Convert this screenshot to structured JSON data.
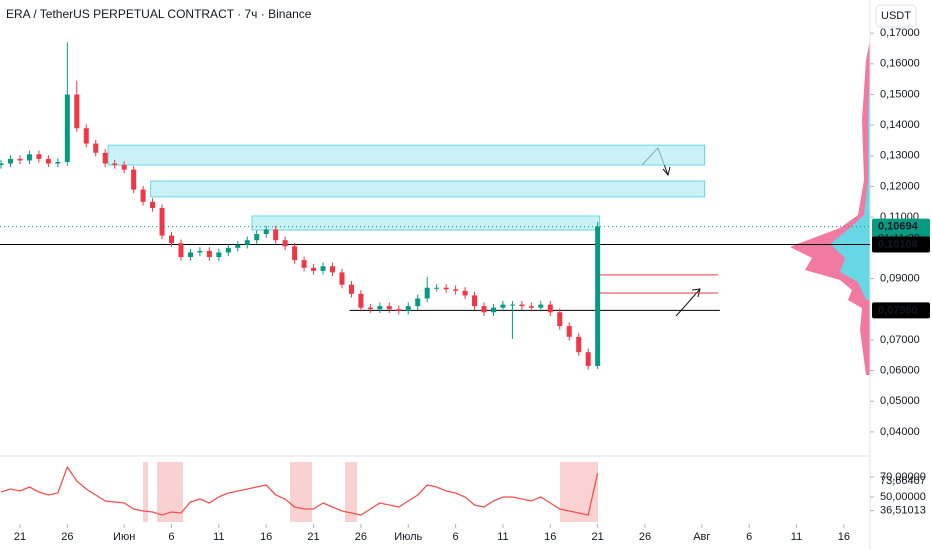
{
  "chart_data": {
    "type": "candlestick",
    "title": "ERA / TetherUS PERPETUAL CONTRACT · 7ч · Binance",
    "currency_button": "USDT",
    "up_color": "#089981",
    "down_color": "#f23645",
    "zone_color": "#b2ebf2",
    "xlim": [
      -2.11,
      89.76
    ],
    "xticks": [
      {
        "value": 0,
        "label": "21"
      },
      {
        "value": 5,
        "label": "26"
      },
      {
        "value": 11,
        "label": "Июн"
      },
      {
        "value": 16,
        "label": "6"
      },
      {
        "value": 21,
        "label": "11"
      },
      {
        "value": 26,
        "label": "16"
      },
      {
        "value": 31,
        "label": "21"
      },
      {
        "value": 36,
        "label": "26"
      },
      {
        "value": 41,
        "label": "Июль"
      },
      {
        "value": 46,
        "label": "6"
      },
      {
        "value": 51,
        "label": "11"
      },
      {
        "value": 56,
        "label": "16"
      },
      {
        "value": 61,
        "label": "21"
      },
      {
        "value": 66,
        "label": "26"
      },
      {
        "value": 72,
        "label": "Авг"
      },
      {
        "value": 77,
        "label": "6"
      },
      {
        "value": 82,
        "label": "11"
      },
      {
        "value": 87,
        "label": "16"
      }
    ],
    "ylim": [
      0.0341,
      0.1808
    ],
    "yticks": [
      {
        "value": 0.17,
        "label": "0,17000"
      },
      {
        "value": 0.16,
        "label": "0,16000"
      },
      {
        "value": 0.15,
        "label": "0,15000"
      },
      {
        "value": 0.14,
        "label": "0,14000"
      },
      {
        "value": 0.13,
        "label": "0,13000"
      },
      {
        "value": 0.12,
        "label": "0,12000"
      },
      {
        "value": 0.11,
        "label": "0,11000"
      },
      {
        "value": 0.09,
        "label": "0,09000"
      },
      {
        "value": 0.07,
        "label": "0,07000"
      },
      {
        "value": 0.06,
        "label": "0,06000"
      },
      {
        "value": 0.05,
        "label": "0,05000"
      },
      {
        "value": 0.04,
        "label": "0,04000"
      }
    ],
    "x": [
      -2,
      -1,
      0,
      1,
      2,
      3,
      4,
      5,
      6,
      7,
      8,
      9,
      10,
      11,
      12,
      13,
      14,
      15,
      16,
      17,
      18,
      19,
      20,
      21,
      22,
      23,
      24,
      25,
      26,
      27,
      28,
      29,
      30,
      31,
      32,
      33,
      34,
      35,
      36,
      37,
      38,
      39,
      40,
      41,
      42,
      43,
      44,
      45,
      46,
      47,
      48,
      49,
      50,
      51,
      52,
      53,
      54,
      55,
      56,
      57,
      58,
      59,
      60,
      61
    ],
    "open": [
      0.127,
      0.1275,
      0.129,
      0.1285,
      0.1305,
      0.129,
      0.1275,
      0.128,
      0.15,
      0.139,
      0.134,
      0.131,
      0.1275,
      0.127,
      0.1255,
      0.119,
      0.115,
      0.113,
      0.104,
      0.1015,
      0.097,
      0.0985,
      0.099,
      0.097,
      0.0985,
      0.1,
      0.101,
      0.1025,
      0.1045,
      0.106,
      0.1025,
      0.1005,
      0.096,
      0.0935,
      0.0925,
      0.094,
      0.092,
      0.088,
      0.085,
      0.0805,
      0.08,
      0.081,
      0.08,
      0.0795,
      0.081,
      0.0835,
      0.087,
      0.087,
      0.0865,
      0.086,
      0.0845,
      0.081,
      0.079,
      0.0805,
      0.0815,
      0.0815,
      0.081,
      0.0805,
      0.0815,
      0.079,
      0.0745,
      0.071,
      0.066,
      0.0615
    ],
    "high": [
      0.1287,
      0.1302,
      0.1302,
      0.1317,
      0.1317,
      0.1302,
      0.1292,
      0.167,
      0.1545,
      0.1402,
      0.1352,
      0.1322,
      0.1287,
      0.1282,
      0.1267,
      0.1202,
      0.1162,
      0.1142,
      0.1052,
      0.1027,
      0.0997,
      0.1002,
      0.1002,
      0.0997,
      0.1012,
      0.1022,
      0.1037,
      0.1057,
      0.1072,
      0.1072,
      0.1037,
      0.1017,
      0.0972,
      0.0947,
      0.0952,
      0.0952,
      0.0932,
      0.0892,
      0.0862,
      0.0817,
      0.0822,
      0.0822,
      0.0812,
      0.0822,
      0.0847,
      0.0905,
      0.0882,
      0.0882,
      0.0877,
      0.0872,
      0.0857,
      0.0822,
      0.0817,
      0.0827,
      0.0827,
      0.0827,
      0.0822,
      0.0827,
      0.0827,
      0.0802,
      0.0757,
      0.0722,
      0.0672,
      0.1085
    ],
    "low": [
      0.1258,
      0.1263,
      0.1273,
      0.1273,
      0.1278,
      0.1263,
      0.1263,
      0.1268,
      0.1378,
      0.1328,
      0.1298,
      0.1263,
      0.1258,
      0.1243,
      0.1178,
      0.1138,
      0.1118,
      0.1028,
      0.1003,
      0.0958,
      0.0958,
      0.0973,
      0.0958,
      0.0958,
      0.0973,
      0.0988,
      0.0998,
      0.1013,
      0.1033,
      0.1013,
      0.0993,
      0.0948,
      0.0923,
      0.0913,
      0.0913,
      0.0908,
      0.0868,
      0.0838,
      0.0793,
      0.0788,
      0.0788,
      0.0788,
      0.0783,
      0.0783,
      0.0798,
      0.0823,
      0.0858,
      0.0853,
      0.0848,
      0.0833,
      0.0798,
      0.0778,
      0.0778,
      0.0793,
      0.0703,
      0.0798,
      0.0793,
      0.0793,
      0.0778,
      0.0733,
      0.0698,
      0.0648,
      0.0603,
      0.0605
    ],
    "close": [
      0.1275,
      0.129,
      0.1285,
      0.1305,
      0.129,
      0.1275,
      0.128,
      0.15,
      0.139,
      0.134,
      0.131,
      0.1275,
      0.127,
      0.1255,
      0.119,
      0.115,
      0.113,
      0.104,
      0.1015,
      0.097,
      0.0985,
      0.099,
      0.097,
      0.0985,
      0.1,
      0.101,
      0.1025,
      0.1045,
      0.106,
      0.1025,
      0.1005,
      0.096,
      0.0935,
      0.0925,
      0.094,
      0.092,
      0.088,
      0.085,
      0.0805,
      0.08,
      0.081,
      0.08,
      0.0795,
      0.081,
      0.0835,
      0.087,
      0.087,
      0.0865,
      0.086,
      0.0845,
      0.081,
      0.079,
      0.0805,
      0.0815,
      0.0815,
      0.081,
      0.0805,
      0.0815,
      0.079,
      0.0745,
      0.071,
      0.066,
      0.0615,
      0.10694
    ],
    "zones": [
      {
        "top": 0.1335,
        "bottom": 0.127,
        "start": 9.3,
        "end": 72.3
      },
      {
        "top": 0.1218,
        "bottom": 0.1166,
        "start": 13.8,
        "end": 72.3
      },
      {
        "top": 0.1104,
        "bottom": 0.1058,
        "start": 24.5,
        "end": 61.2
      }
    ],
    "levels": [
      {
        "value": 0.10108,
        "color": "#000000"
      },
      {
        "value": 0.0796,
        "start": 34.8,
        "end": 73.9,
        "color": "#000000"
      },
      {
        "value": 0.0912,
        "start": 61.2,
        "end": 73.7,
        "color": "#f23645"
      },
      {
        "value": 0.0853,
        "start": 61.2,
        "end": 73.7,
        "color": "#f23645"
      }
    ],
    "price_tags": [
      {
        "value": 0.10694,
        "label": "0,10694",
        "countdown": "01:11:28",
        "color": "#089981"
      },
      {
        "value": 0.10108,
        "label": "0,10108",
        "color": "#000000"
      },
      {
        "value": 0.0796,
        "label": "0,07960",
        "color": "#000000"
      }
    ],
    "indicator": {
      "color": "#ef5350",
      "ylim": [
        25,
        85
      ],
      "yticks": [
        {
          "value": 36.51013,
          "label": "36,51013"
        },
        {
          "value": 50,
          "label": "50,00000"
        },
        {
          "value": 70,
          "label": "70,00000"
        }
      ],
      "last_label": "73,66407",
      "values": [
        55,
        58,
        56,
        60,
        55,
        52,
        54,
        80,
        66,
        58,
        52,
        46,
        45,
        44,
        38,
        36,
        35,
        32,
        35,
        34,
        45,
        48,
        44,
        50,
        54,
        56,
        58,
        60,
        62,
        52,
        48,
        40,
        38,
        38,
        44,
        40,
        36,
        34,
        32,
        38,
        44,
        42,
        40,
        46,
        52,
        62,
        60,
        56,
        54,
        50,
        42,
        40,
        46,
        50,
        50,
        48,
        46,
        50,
        44,
        38,
        36,
        34,
        32,
        73.66407
      ]
    }
  }
}
